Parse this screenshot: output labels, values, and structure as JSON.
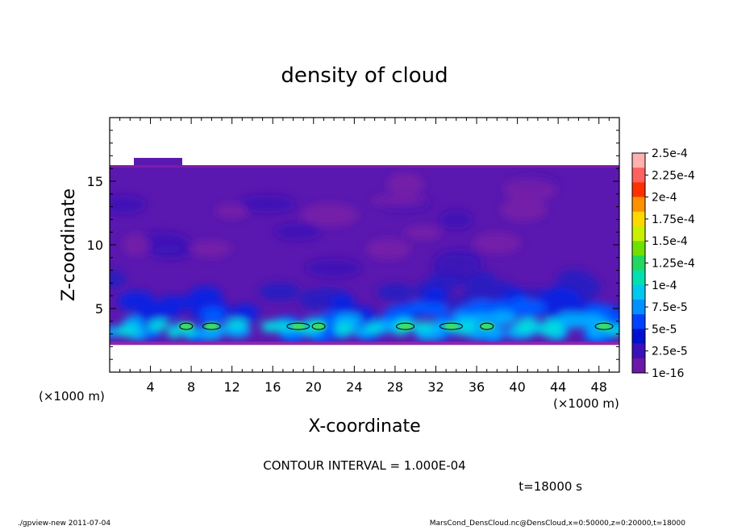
{
  "chart_data": {
    "type": "heatmap",
    "title": "density of cloud",
    "xlabel": "X-coordinate",
    "ylabel": "Z-coordinate",
    "x_unit": "(×1000 m)",
    "y_unit": "(×1000 m)",
    "xlim": [
      0,
      50
    ],
    "ylim": [
      0,
      20
    ],
    "x_ticks": [
      "4",
      "8",
      "12",
      "16",
      "20",
      "24",
      "28",
      "32",
      "36",
      "40",
      "44",
      "48"
    ],
    "y_ticks": [
      "5",
      "10",
      "15"
    ],
    "contour_interval_text": "CONTOUR INTERVAL = 1.000E-04",
    "time_text": "t=18000 s",
    "colorbar": {
      "labels": [
        "2.5e-4",
        "2.25e-4",
        "2e-4",
        "1.75e-4",
        "1.5e-4",
        "1.25e-4",
        "1e-4",
        "7.5e-5",
        "5e-5",
        "2.5e-5",
        "1e-16"
      ],
      "colors": [
        "#ffb0b0",
        "#ff6060",
        "#ff3000",
        "#ff9000",
        "#ffd800",
        "#c8f000",
        "#70e000",
        "#20d860",
        "#00e0b0",
        "#00c8f0",
        "#0090ff",
        "#0040ff",
        "#0010d0",
        "#3a10b8",
        "#6a18a8"
      ]
    },
    "field": {
      "cloud_base_km": 2.2,
      "cloud_top_km": 16.2,
      "peak_layer_km": [
        3.0,
        4.2
      ],
      "contour_level": "1.0e-4",
      "contour_region_centers_x_km": [
        7.5,
        10,
        18.5,
        20.5,
        29,
        33.5,
        37,
        48.5
      ]
    }
  },
  "footer": {
    "left": "./gpview-new   2011-07-04",
    "right": "MarsCond_DensCloud.nc@DensCloud,x=0:50000,z=0:20000,t=18000"
  }
}
